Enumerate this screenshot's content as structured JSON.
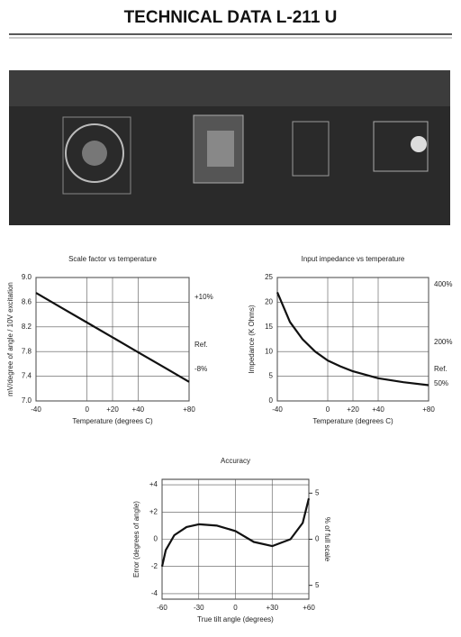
{
  "header": {
    "title": "TECHNICAL DATA L-211 U"
  },
  "chart_data": [
    {
      "type": "line",
      "title": "Scale factor vs temperature",
      "x_label": "Temperature (degrees C)",
      "y_label": "mV/degree of angle / 10V excitation",
      "x": [
        -40,
        -20,
        0,
        20,
        40,
        60,
        80
      ],
      "series": [
        {
          "color": "#111111",
          "values": [
            8.75,
            8.51,
            8.27,
            8.03,
            7.79,
            7.55,
            7.31
          ]
        }
      ],
      "xlim": [
        -40,
        80
      ],
      "ylim": [
        7.0,
        9.0
      ],
      "xticks": [
        {
          "value": -40,
          "label": "-40"
        },
        0,
        {
          "value": 20,
          "label": "+20"
        },
        {
          "value": 40,
          "label": "+40"
        },
        {
          "value": 80,
          "label": "+80"
        }
      ],
      "yticks": [
        {
          "value": 7.0,
          "label": "7.0"
        },
        {
          "value": 7.4,
          "label": "7.4"
        },
        {
          "value": 7.8,
          "label": "7.8"
        },
        {
          "value": 8.2,
          "label": "8.2"
        },
        {
          "value": 8.6,
          "label": "8.6"
        },
        {
          "value": 9.0,
          "label": "9.0"
        }
      ],
      "annotations": [
        "+10%",
        "Ref.",
        "-8%"
      ],
      "grid": true
    },
    {
      "type": "line",
      "title": "Input impedance vs temperature",
      "x_label": "Temperature (degrees C)",
      "y_label": "Impedance (K Ohms)",
      "x": [
        -40,
        -30,
        -20,
        -10,
        0,
        10,
        20,
        40,
        60,
        80
      ],
      "series": [
        {
          "color": "#111111",
          "values": [
            22,
            16,
            12.5,
            10,
            8.2,
            7,
            6,
            4.6,
            3.8,
            3.2
          ]
        }
      ],
      "xlim": [
        -40,
        80
      ],
      "ylim": [
        0,
        25
      ],
      "xticks": [
        {
          "value": -40,
          "label": "-40"
        },
        0,
        {
          "value": 20,
          "label": "+20"
        },
        {
          "value": 40,
          "label": "+40"
        },
        {
          "value": 80,
          "label": "+80"
        }
      ],
      "yticks": [
        0,
        5,
        10,
        15,
        20,
        25
      ],
      "annotations": [
        "400%",
        "200%",
        "Ref.",
        "50%"
      ],
      "grid": true
    },
    {
      "type": "line",
      "title": "Accuracy",
      "x_label": "True tilt angle (degrees)",
      "y_label": "Error (degrees of angle)",
      "y2_label": "% of full scale",
      "x": [
        -60,
        -57,
        -50,
        -40,
        -30,
        -15,
        0,
        15,
        30,
        45,
        55,
        60
      ],
      "series": [
        {
          "color": "#111111",
          "values": [
            -2,
            -0.8,
            0.3,
            0.9,
            1.1,
            1.0,
            0.6,
            -0.2,
            -0.5,
            0,
            1.2,
            3.0
          ]
        }
      ],
      "xlim": [
        -60,
        60
      ],
      "ylim": [
        -4.4,
        4.4
      ],
      "y2lim": [
        -6.5,
        6.5
      ],
      "xticks": [
        {
          "value": -60,
          "label": "-60"
        },
        {
          "value": -30,
          "label": "-30"
        },
        0,
        {
          "value": 30,
          "label": "+30"
        },
        {
          "value": 60,
          "label": "+60"
        }
      ],
      "yticks": [
        {
          "value": -4,
          "label": "-4"
        },
        {
          "value": -2,
          "label": "-2"
        },
        0,
        {
          "value": 2,
          "label": "+2"
        },
        {
          "value": 4,
          "label": "+4"
        }
      ],
      "y2ticks": [
        5,
        0,
        {
          "value": -5,
          "label": "5"
        }
      ],
      "grid": true
    }
  ]
}
